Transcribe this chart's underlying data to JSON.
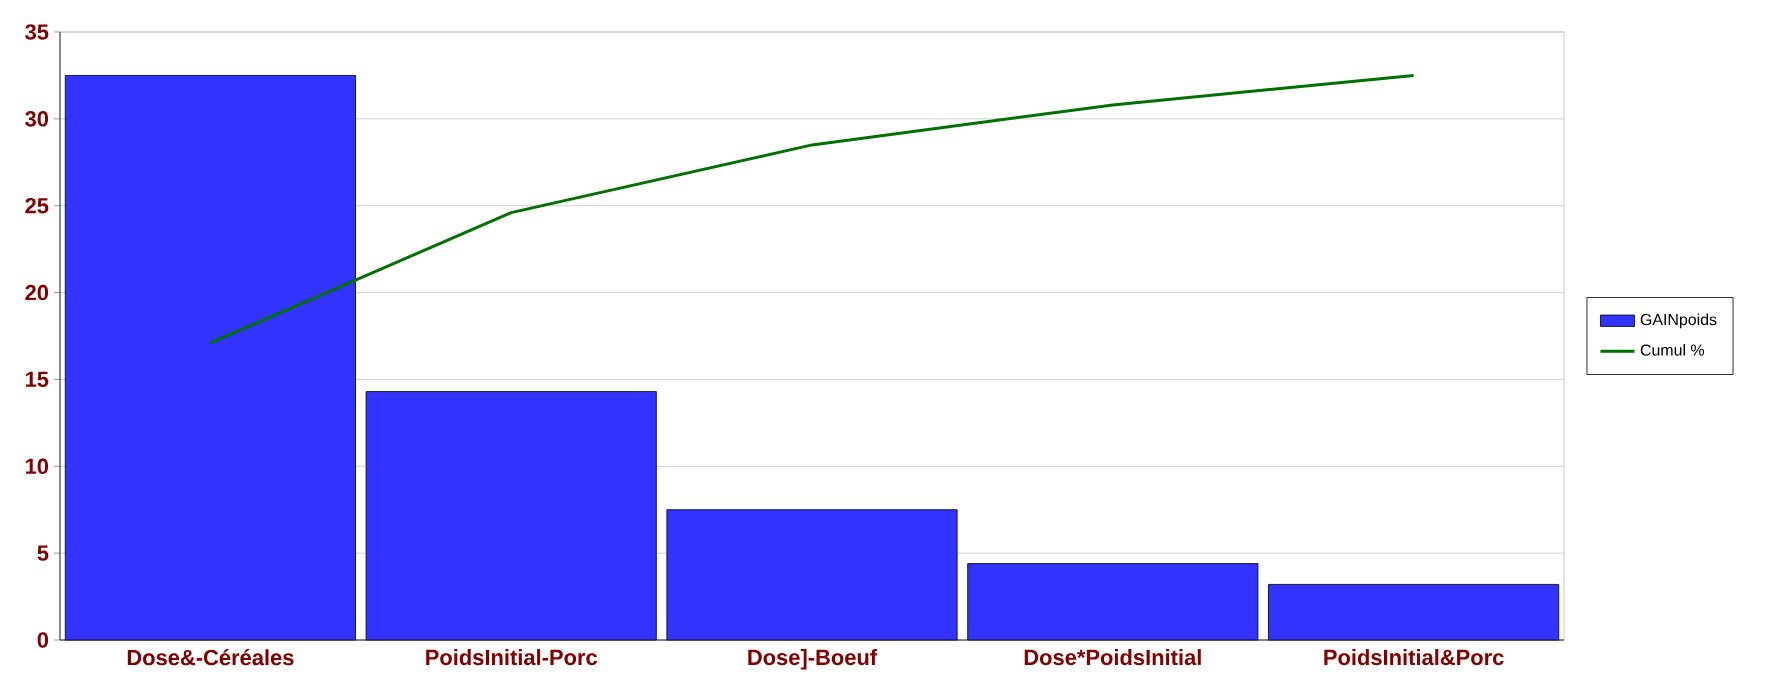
{
  "chart_data": {
    "type": "bar",
    "categories": [
      "Dose&-Céréales",
      "PoidsInitial-Porc",
      "Dose]-Boeuf",
      "Dose*PoidsInitial",
      "PoidsInitial&Porc"
    ],
    "series": [
      {
        "name": "GAINpoids",
        "color": "#3333ff",
        "values": [
          32.5,
          14.3,
          7.5,
          4.4,
          3.2
        ]
      },
      {
        "name": "Cumul %",
        "type": "line",
        "color": "#007000",
        "values": [
          17.1,
          24.6,
          28.5,
          30.8,
          32.5
        ]
      }
    ],
    "ylim": [
      0,
      35
    ],
    "yticks": [
      0,
      5,
      10,
      15,
      20,
      25,
      30,
      35
    ],
    "grid": "y",
    "legend": "right"
  }
}
